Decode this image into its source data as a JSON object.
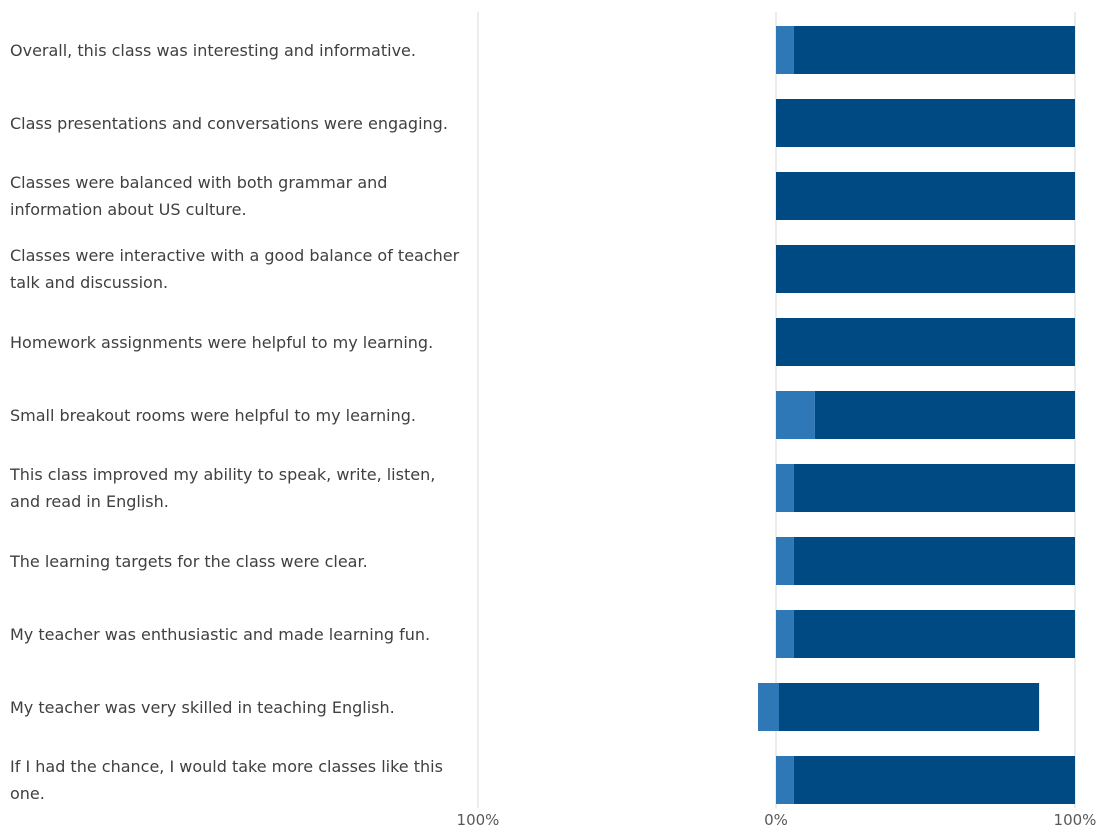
{
  "colors": {
    "strongly_agree": "#004a84",
    "agree": "#2e78b7",
    "neutral": "#8c8c8c",
    "grid": "#d9d9d9"
  },
  "chart_data": {
    "type": "bar",
    "orientation": "horizontal",
    "stacked": true,
    "diverging": true,
    "categories": [
      "Overall, this class was interesting and informative.",
      "Class presentations and conversations were engaging.",
      "Classes were balanced with both grammar and information about US culture.",
      "Classes were interactive with a good balance of teacher talk and discussion.",
      "Homework assignments were helpful to my learning.",
      "Small breakout rooms were helpful to my learning.",
      "This class improved my ability to speak, write, listen, and read in English.",
      "The learning targets for the class were clear.",
      "My teacher was enthusiastic and made learning fun.",
      "My teacher was very skilled in teaching English.",
      "If I had the chance, I would take more classes like this one."
    ],
    "series": [
      {
        "key": "neutral",
        "values": [
          0,
          0,
          0,
          0,
          0,
          0,
          0,
          0,
          0,
          6,
          0
        ]
      },
      {
        "key": "agree",
        "values": [
          6,
          0,
          0,
          0,
          0,
          13,
          6,
          6,
          6,
          7,
          6
        ]
      },
      {
        "key": "strongly_agree",
        "values": [
          94,
          100,
          100,
          100,
          100,
          87,
          94,
          94,
          94,
          87,
          94
        ]
      }
    ],
    "xlim": [
      -100,
      100
    ],
    "xticks": [
      "100%",
      "0%",
      "100%"
    ],
    "grid": true
  }
}
